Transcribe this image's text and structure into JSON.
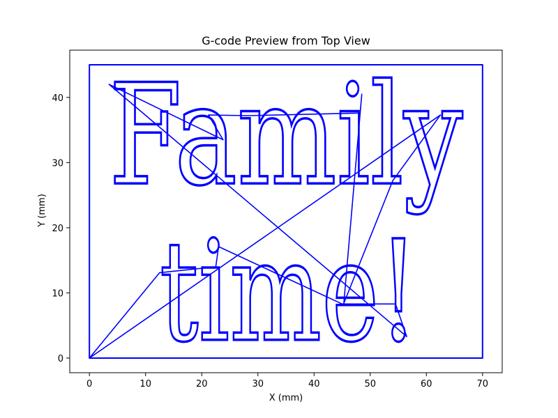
{
  "chart_data": {
    "type": "line",
    "title": "G-code Preview from Top View",
    "xlabel": "X (mm)",
    "ylabel": "Y (mm)",
    "xlim": [
      -3.5,
      73.5
    ],
    "ylim": [
      -2.25,
      47.25
    ],
    "x_ticks": [
      0,
      10,
      20,
      30,
      40,
      50,
      60,
      70
    ],
    "y_ticks": [
      0,
      10,
      20,
      30,
      40
    ],
    "grid": false,
    "line_color": "#0000ff",
    "text_paths": [
      {
        "text": "Family",
        "x_start": 3.5,
        "x_end": 66.5,
        "y_baseline": 26.8
      },
      {
        "text": "time!",
        "x_start": 12.5,
        "x_end": 58.5,
        "y_baseline": 2.8
      }
    ],
    "series": [
      {
        "values_desc": "outer boundary",
        "x": [
          0,
          70,
          70,
          0,
          0
        ],
        "y": [
          0,
          0,
          45,
          45,
          0
        ]
      },
      {
        "values_desc": "travel moves",
        "x": [
          0,
          62.5,
          54,
          45.3,
          48.5,
          48.2,
          28.2,
          21.2,
          23.8,
          3.5,
          56.5,
          54.5,
          45,
          23,
          22.5,
          12.5,
          0
        ],
        "y": [
          0,
          37.3,
          27.2,
          8.4,
          40.5,
          37.6,
          37.2,
          37.3,
          33.5,
          42,
          3.3,
          8.3,
          8.3,
          17.1,
          14,
          13.1,
          0
        ]
      }
    ]
  }
}
